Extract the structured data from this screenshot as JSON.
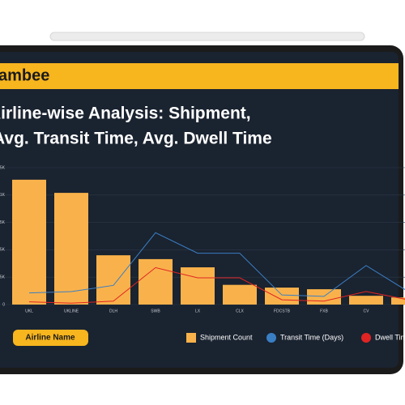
{
  "header": {
    "logo": "ambee"
  },
  "filter": {
    "label": "Airline Name"
  },
  "chart_data": {
    "type": "bar-line",
    "title": [
      "Airline-wise Analysis:  Shipment,",
      "Avg. Transit Time, Avg. Dwell Time"
    ],
    "categories": [
      "UKL",
      "UKLINE",
      "DLH",
      "SWB",
      "LX",
      "CLX",
      "FDCSTB",
      "FXB",
      "CV",
      null
    ],
    "series": [
      {
        "name": "Shipment Count",
        "color": "#f9b24b",
        "kind": "bar",
        "values": [
          1140,
          1020,
          450,
          415,
          340,
          180,
          155,
          140,
          80,
          65
        ]
      },
      {
        "name": "Transit Time (Days)",
        "color": "#3a7fc4",
        "kind": "line",
        "axis": "y2",
        "values": [
          1.7,
          1.9,
          2.8,
          10.5,
          7.5,
          7.5,
          1.4,
          1.2,
          5.7,
          1.9
        ]
      },
      {
        "name": "Dwell Time (Days)",
        "color": "#e02424",
        "kind": "line",
        "axis": "y2",
        "values": [
          0.4,
          0.2,
          0.5,
          5.4,
          3.9,
          3.9,
          0.7,
          0.5,
          1.9,
          0.7
        ]
      }
    ],
    "ylim": [
      0,
      1250
    ],
    "yticks": [
      0,
      {
        "value": 250,
        "label": "0.25K"
      },
      {
        "value": 500,
        "label": "0.5K"
      },
      {
        "value": 750,
        "label": "0.75K"
      },
      {
        "value": 1000,
        "label": "1K"
      },
      {
        "value": 1250,
        "label": "1.25K"
      }
    ],
    "y2lim": [
      0,
      20
    ],
    "grid": true
  }
}
